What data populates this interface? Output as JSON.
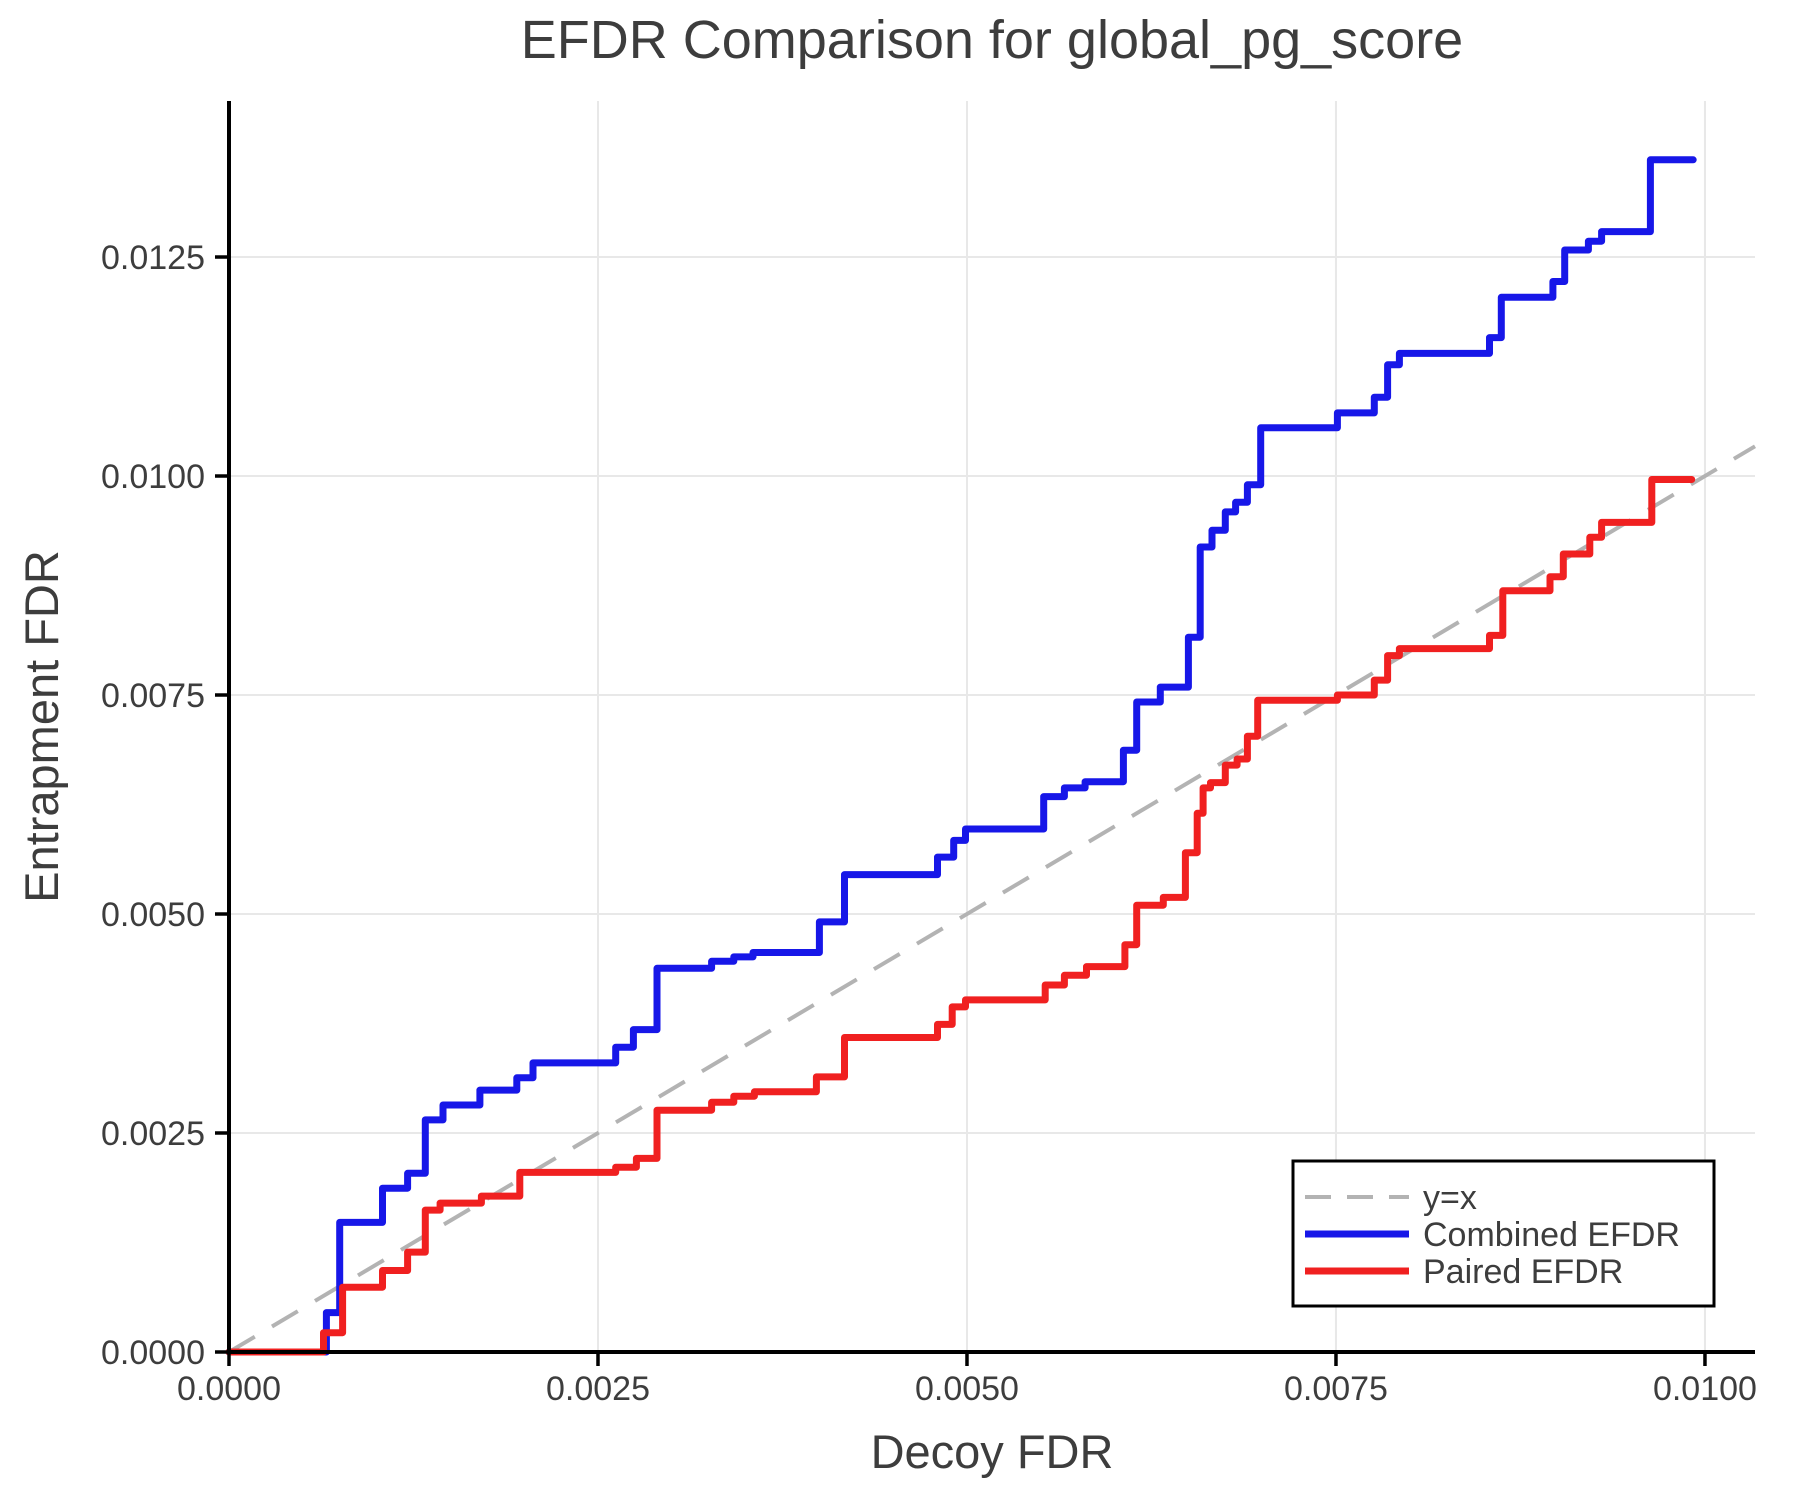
{
  "title": "EFDR Comparison for global_pg_score",
  "colors": {
    "combined": "#1717e8",
    "paired": "#f02020",
    "identity": "#b3b3b3",
    "grid": "#e8e8e8",
    "spine": "#000000",
    "text": "#3d3d3d",
    "legend_border": "#000000",
    "legend_bg": "#ffffff"
  },
  "legend": {
    "entries": [
      {
        "label": "y=x",
        "color": "#b3b3b3",
        "dashed": true
      },
      {
        "label": "Combined EFDR",
        "color": "#1717e8",
        "dashed": false
      },
      {
        "label": "Paired EFDR",
        "color": "#f02020",
        "dashed": false
      }
    ]
  },
  "chart_data": {
    "type": "line",
    "subtype": "step-after",
    "title": "EFDR Comparison for global_pg_score",
    "xlabel": "Decoy FDR",
    "ylabel": "Entrapment FDR",
    "xlim": [
      0,
      0.010339
    ],
    "ylim": [
      0,
      0.014281
    ],
    "grid": true,
    "legend_position": "bottom-right",
    "x_ticks": [
      {
        "v": 0.0,
        "label": "0.0000"
      },
      {
        "v": 0.0025,
        "label": "0.0025"
      },
      {
        "v": 0.005,
        "label": "0.0050"
      },
      {
        "v": 0.0075,
        "label": "0.0075"
      },
      {
        "v": 0.01,
        "label": "0.0100"
      }
    ],
    "y_ticks": [
      {
        "v": 0.0,
        "label": "0.0000"
      },
      {
        "v": 0.0025,
        "label": "0.0025"
      },
      {
        "v": 0.005,
        "label": "0.0050"
      },
      {
        "v": 0.0075,
        "label": "0.0075"
      },
      {
        "v": 0.01,
        "label": "0.0100"
      },
      {
        "v": 0.0125,
        "label": "0.0125"
      }
    ],
    "series": [
      {
        "name": "y=x",
        "style": "dashed",
        "draw": "segment",
        "points": [
          [
            0,
            0
          ],
          [
            0.010339,
            0.010339
          ]
        ]
      },
      {
        "name": "Combined EFDR",
        "style": "solid",
        "draw": "step",
        "end_x": 0.00992,
        "points": [
          [
            0.0,
            0.0
          ],
          [
            0.00066,
            0.00045
          ],
          [
            0.00075,
            0.00148
          ],
          [
            0.00104,
            0.00187
          ],
          [
            0.00121,
            0.00204
          ],
          [
            0.00133,
            0.00265
          ],
          [
            0.00145,
            0.00282
          ],
          [
            0.0017,
            0.00299
          ],
          [
            0.00195,
            0.00313
          ],
          [
            0.00206,
            0.0033
          ],
          [
            0.00262,
            0.00348
          ],
          [
            0.00274,
            0.00368
          ],
          [
            0.0029,
            0.00438
          ],
          [
            0.00327,
            0.00446
          ],
          [
            0.00342,
            0.00451
          ],
          [
            0.00355,
            0.00456
          ],
          [
            0.004,
            0.00491
          ],
          [
            0.00417,
            0.00545
          ],
          [
            0.0048,
            0.00565
          ],
          [
            0.00491,
            0.00584
          ],
          [
            0.00499,
            0.00597
          ],
          [
            0.00552,
            0.00634
          ],
          [
            0.00566,
            0.00644
          ],
          [
            0.0058,
            0.00651
          ],
          [
            0.00606,
            0.00687
          ],
          [
            0.00615,
            0.00742
          ],
          [
            0.00631,
            0.00759
          ],
          [
            0.0065,
            0.00816
          ],
          [
            0.00658,
            0.00919
          ],
          [
            0.00666,
            0.00938
          ],
          [
            0.00675,
            0.00959
          ],
          [
            0.00682,
            0.0097
          ],
          [
            0.0069,
            0.0099
          ],
          [
            0.00699,
            0.01055
          ],
          [
            0.00751,
            0.01072
          ],
          [
            0.00776,
            0.0109
          ],
          [
            0.00785,
            0.01127
          ],
          [
            0.00793,
            0.0114
          ],
          [
            0.00854,
            0.01158
          ],
          [
            0.00862,
            0.01204
          ],
          [
            0.00897,
            0.01222
          ],
          [
            0.00905,
            0.01258
          ],
          [
            0.00921,
            0.01268
          ],
          [
            0.0093,
            0.01279
          ],
          [
            0.00963,
            0.01361
          ]
        ]
      },
      {
        "name": "Paired EFDR",
        "style": "solid",
        "draw": "step",
        "end_x": 0.00991,
        "points": [
          [
            0.0,
            0.0
          ],
          [
            0.00064,
            0.00022
          ],
          [
            0.00077,
            0.00074
          ],
          [
            0.00104,
            0.00093
          ],
          [
            0.00121,
            0.00114
          ],
          [
            0.00133,
            0.00162
          ],
          [
            0.00143,
            0.0017
          ],
          [
            0.00171,
            0.00178
          ],
          [
            0.00197,
            0.00205
          ],
          [
            0.00262,
            0.00211
          ],
          [
            0.00276,
            0.00221
          ],
          [
            0.0029,
            0.00276
          ],
          [
            0.00327,
            0.00285
          ],
          [
            0.00342,
            0.00292
          ],
          [
            0.00356,
            0.00297
          ],
          [
            0.00398,
            0.00314
          ],
          [
            0.00417,
            0.00359
          ],
          [
            0.0048,
            0.00374
          ],
          [
            0.0049,
            0.00394
          ],
          [
            0.00499,
            0.00402
          ],
          [
            0.00553,
            0.00419
          ],
          [
            0.00566,
            0.0043
          ],
          [
            0.00581,
            0.0044
          ],
          [
            0.00607,
            0.00465
          ],
          [
            0.00615,
            0.0051
          ],
          [
            0.00633,
            0.00519
          ],
          [
            0.00648,
            0.0057
          ],
          [
            0.00656,
            0.00615
          ],
          [
            0.0066,
            0.00644
          ],
          [
            0.00665,
            0.0065
          ],
          [
            0.00675,
            0.0067
          ],
          [
            0.00683,
            0.00677
          ],
          [
            0.0069,
            0.00703
          ],
          [
            0.00697,
            0.00744
          ],
          [
            0.00751,
            0.0075
          ],
          [
            0.00776,
            0.00767
          ],
          [
            0.00785,
            0.00795
          ],
          [
            0.00793,
            0.00803
          ],
          [
            0.00854,
            0.00818
          ],
          [
            0.00863,
            0.00869
          ],
          [
            0.00895,
            0.00885
          ],
          [
            0.00904,
            0.00911
          ],
          [
            0.00922,
            0.0093
          ],
          [
            0.0093,
            0.00947
          ],
          [
            0.00964,
            0.00996
          ]
        ]
      }
    ]
  }
}
